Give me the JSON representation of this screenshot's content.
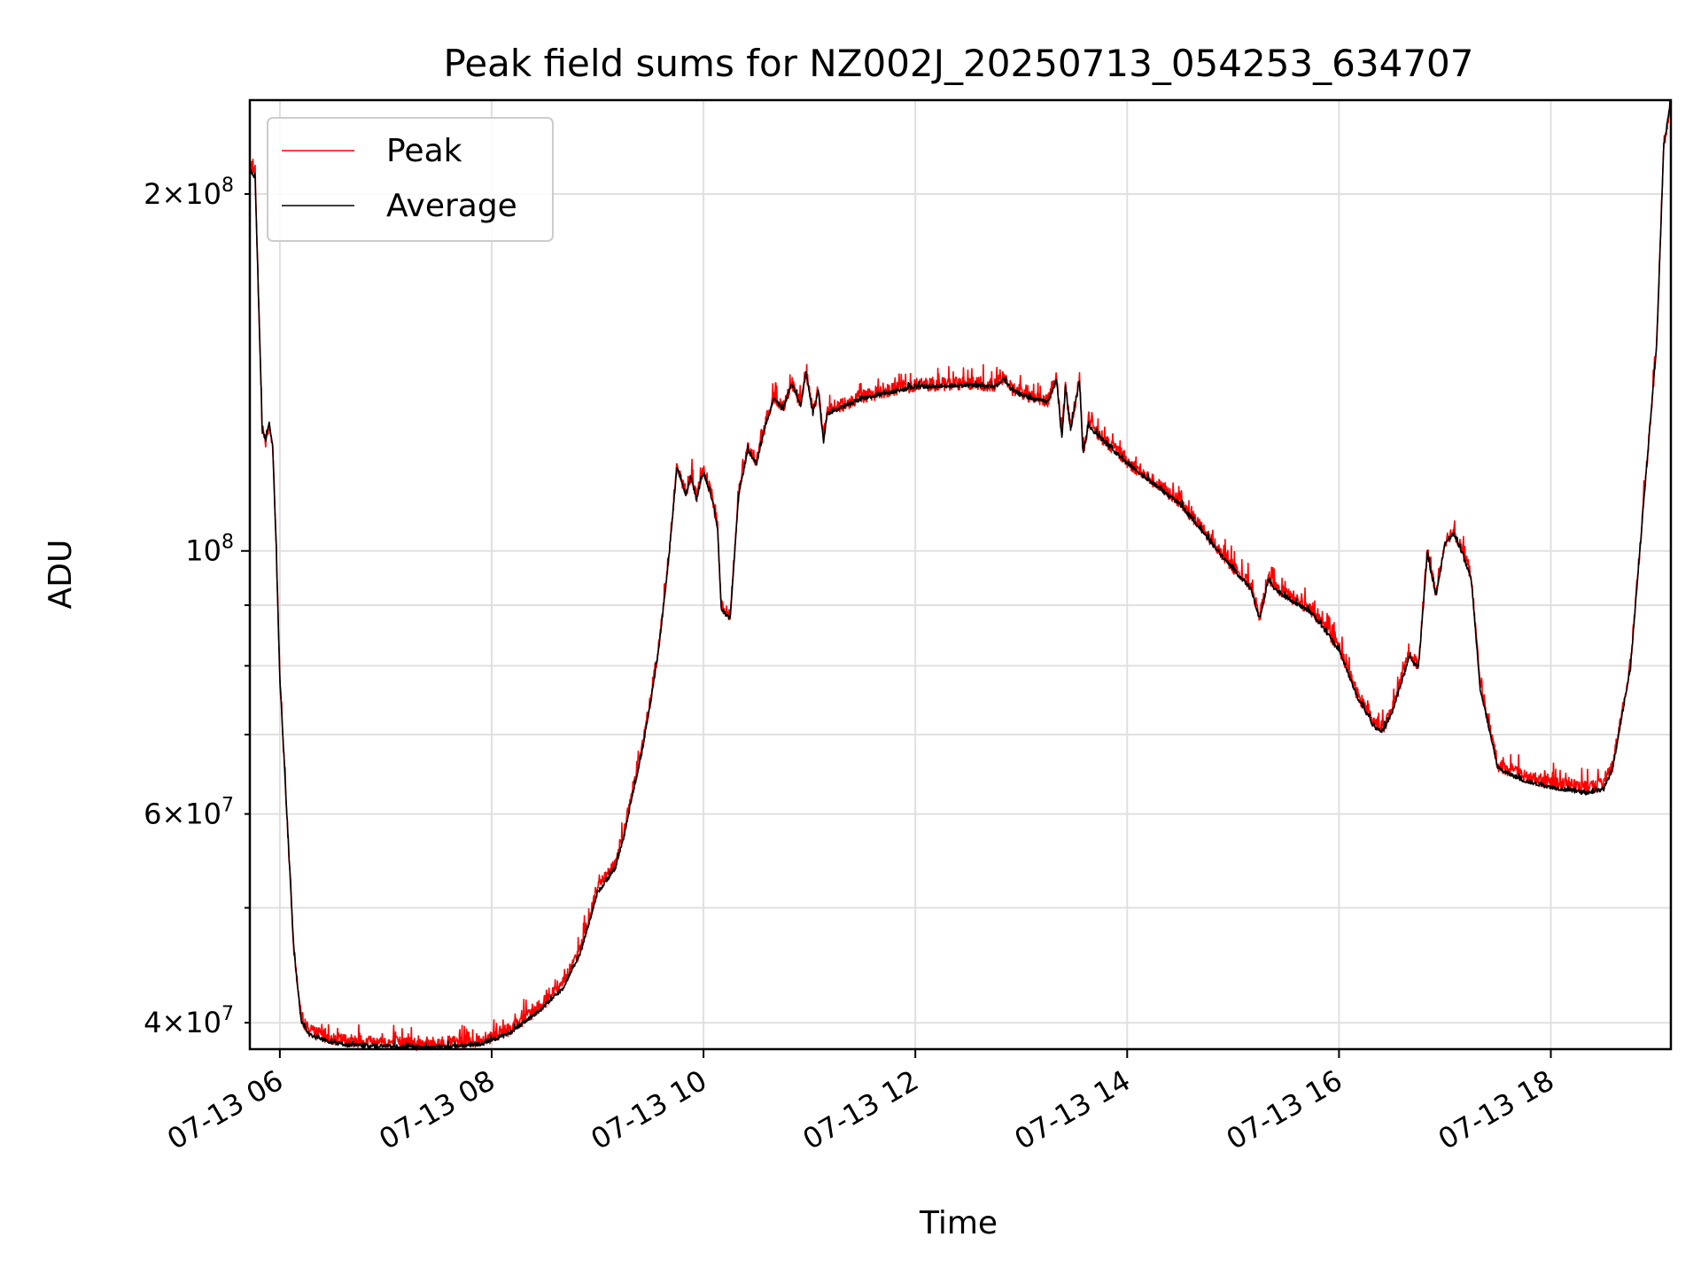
{
  "chart_data": {
    "type": "line",
    "title": "Peak field sums for NZ002J_20250713_054253_634707",
    "xlabel": "Time",
    "ylabel": "ADU",
    "yscale": "log",
    "grid": true,
    "legend_position": "upper-left",
    "xlim": [
      "2025-07-13 05:43",
      "2025-07-13 19:08"
    ],
    "ylim": [
      38000000,
      240000000
    ],
    "x_ticks": [
      {
        "value": "2025-07-13 06:00",
        "label": "07-13 06"
      },
      {
        "value": "2025-07-13 08:00",
        "label": "07-13 08"
      },
      {
        "value": "2025-07-13 10:00",
        "label": "07-13 10"
      },
      {
        "value": "2025-07-13 12:00",
        "label": "07-13 12"
      },
      {
        "value": "2025-07-13 14:00",
        "label": "07-13 14"
      },
      {
        "value": "2025-07-13 16:00",
        "label": "07-13 16"
      },
      {
        "value": "2025-07-13 18:00",
        "label": "07-13 18"
      }
    ],
    "y_major_ticks": [
      {
        "value": 100000000,
        "base": "10",
        "exp": "8"
      }
    ],
    "y_minor_labeled_ticks": [
      {
        "value": 40000000,
        "mant": "4",
        "base": "10",
        "exp": "7"
      },
      {
        "value": 60000000,
        "mant": "6",
        "base": "10",
        "exp": "7"
      },
      {
        "value": 200000000,
        "mant": "2",
        "base": "10",
        "exp": "8"
      }
    ],
    "y_minor_ticks": [
      50000000,
      70000000,
      80000000,
      90000000
    ],
    "series": [
      {
        "name": "Peak",
        "color": "#ff0000",
        "noise": 0.013,
        "x": [
          "2025-07-13 05:43",
          "2025-07-13 05:46",
          "2025-07-13 05:50",
          "2025-07-13 05:52",
          "2025-07-13 05:54",
          "2025-07-13 05:56",
          "2025-07-13 05:58",
          "2025-07-13 06:00",
          "2025-07-13 06:04",
          "2025-07-13 06:08",
          "2025-07-13 06:12",
          "2025-07-13 06:16",
          "2025-07-13 06:20",
          "2025-07-13 06:25",
          "2025-07-13 06:30",
          "2025-07-13 06:40",
          "2025-07-13 07:00",
          "2025-07-13 07:20",
          "2025-07-13 07:40",
          "2025-07-13 07:55",
          "2025-07-13 08:10",
          "2025-07-13 08:25",
          "2025-07-13 08:40",
          "2025-07-13 08:50",
          "2025-07-13 09:00",
          "2025-07-13 09:10",
          "2025-07-13 09:15",
          "2025-07-13 09:20",
          "2025-07-13 09:25",
          "2025-07-13 09:30",
          "2025-07-13 09:35",
          "2025-07-13 09:40",
          "2025-07-13 09:45",
          "2025-07-13 09:50",
          "2025-07-13 09:53",
          "2025-07-13 09:56",
          "2025-07-13 10:00",
          "2025-07-13 10:05",
          "2025-07-13 10:08",
          "2025-07-13 10:10",
          "2025-07-13 10:15",
          "2025-07-13 10:18",
          "2025-07-13 10:20",
          "2025-07-13 10:25",
          "2025-07-13 10:30",
          "2025-07-13 10:35",
          "2025-07-13 10:40",
          "2025-07-13 10:45",
          "2025-07-13 10:50",
          "2025-07-13 10:55",
          "2025-07-13 10:58",
          "2025-07-13 11:02",
          "2025-07-13 11:05",
          "2025-07-13 11:08",
          "2025-07-13 11:10",
          "2025-07-13 11:15",
          "2025-07-13 11:30",
          "2025-07-13 12:00",
          "2025-07-13 12:30",
          "2025-07-13 12:45",
          "2025-07-13 12:50",
          "2025-07-13 12:55",
          "2025-07-13 13:05",
          "2025-07-13 13:15",
          "2025-07-13 13:20",
          "2025-07-13 13:23",
          "2025-07-13 13:25",
          "2025-07-13 13:28",
          "2025-07-13 13:30",
          "2025-07-13 13:33",
          "2025-07-13 13:35",
          "2025-07-13 13:38",
          "2025-07-13 13:45",
          "2025-07-13 14:00",
          "2025-07-13 14:30",
          "2025-07-13 15:00",
          "2025-07-13 15:10",
          "2025-07-13 15:15",
          "2025-07-13 15:20",
          "2025-07-13 15:25",
          "2025-07-13 15:45",
          "2025-07-13 16:00",
          "2025-07-13 16:10",
          "2025-07-13 16:20",
          "2025-07-13 16:25",
          "2025-07-13 16:30",
          "2025-07-13 16:40",
          "2025-07-13 16:45",
          "2025-07-13 16:50",
          "2025-07-13 16:55",
          "2025-07-13 17:00",
          "2025-07-13 17:05",
          "2025-07-13 17:10",
          "2025-07-13 17:15",
          "2025-07-13 17:20",
          "2025-07-13 17:30",
          "2025-07-13 17:45",
          "2025-07-13 18:00",
          "2025-07-13 18:20",
          "2025-07-13 18:30",
          "2025-07-13 18:35",
          "2025-07-13 18:45",
          "2025-07-13 19:00",
          "2025-07-13 19:04",
          "2025-07-13 19:08"
        ],
        "y": [
          210000000,
          206000000,
          127000000,
          124000000,
          128000000,
          122000000,
          100000000,
          78000000,
          60000000,
          46000000,
          40500000,
          39500000,
          39200000,
          39000000,
          38800000,
          38600000,
          38500000,
          38400000,
          38500000,
          38700000,
          39500000,
          41000000,
          43000000,
          46000000,
          52000000,
          54500000,
          58000000,
          63000000,
          68000000,
          75000000,
          84000000,
          98000000,
          118000000,
          112000000,
          116000000,
          111000000,
          117000000,
          111000000,
          105000000,
          90000000,
          88000000,
          102000000,
          112000000,
          122000000,
          119000000,
          128000000,
          135000000,
          132000000,
          139000000,
          133000000,
          142000000,
          131000000,
          137000000,
          124000000,
          131000000,
          132000000,
          135000000,
          138000000,
          138500000,
          138000000,
          140000000,
          137000000,
          135000000,
          134000000,
          140000000,
          125000000,
          138000000,
          127000000,
          132000000,
          140000000,
          121000000,
          128000000,
          125000000,
          119000000,
          110000000,
          97000000,
          93500000,
          88000000,
          95000000,
          93000000,
          89000000,
          83000000,
          76000000,
          71500000,
          71000000,
          73500000,
          82000000,
          80000000,
          100000000,
          92000000,
          102000000,
          104000000,
          100000000,
          95000000,
          77000000,
          66000000,
          64500000,
          63800000,
          63200000,
          63500000,
          66000000,
          80000000,
          150000000,
          220000000,
          240000000
        ]
      },
      {
        "name": "Average",
        "color": "#000000",
        "noise": 0.004,
        "x": [
          "2025-07-13 05:43",
          "2025-07-13 05:46",
          "2025-07-13 05:50",
          "2025-07-13 05:52",
          "2025-07-13 05:54",
          "2025-07-13 05:56",
          "2025-07-13 05:58",
          "2025-07-13 06:00",
          "2025-07-13 06:04",
          "2025-07-13 06:08",
          "2025-07-13 06:12",
          "2025-07-13 06:16",
          "2025-07-13 06:20",
          "2025-07-13 06:25",
          "2025-07-13 06:30",
          "2025-07-13 06:40",
          "2025-07-13 07:00",
          "2025-07-13 07:20",
          "2025-07-13 07:40",
          "2025-07-13 07:55",
          "2025-07-13 08:10",
          "2025-07-13 08:25",
          "2025-07-13 08:40",
          "2025-07-13 08:50",
          "2025-07-13 09:00",
          "2025-07-13 09:10",
          "2025-07-13 09:15",
          "2025-07-13 09:20",
          "2025-07-13 09:25",
          "2025-07-13 09:30",
          "2025-07-13 09:35",
          "2025-07-13 09:40",
          "2025-07-13 09:45",
          "2025-07-13 09:50",
          "2025-07-13 09:53",
          "2025-07-13 09:56",
          "2025-07-13 10:00",
          "2025-07-13 10:05",
          "2025-07-13 10:08",
          "2025-07-13 10:10",
          "2025-07-13 10:15",
          "2025-07-13 10:18",
          "2025-07-13 10:20",
          "2025-07-13 10:25",
          "2025-07-13 10:30",
          "2025-07-13 10:35",
          "2025-07-13 10:40",
          "2025-07-13 10:45",
          "2025-07-13 10:50",
          "2025-07-13 10:55",
          "2025-07-13 10:58",
          "2025-07-13 11:02",
          "2025-07-13 11:05",
          "2025-07-13 11:08",
          "2025-07-13 11:10",
          "2025-07-13 11:15",
          "2025-07-13 11:30",
          "2025-07-13 12:00",
          "2025-07-13 12:30",
          "2025-07-13 12:45",
          "2025-07-13 12:50",
          "2025-07-13 12:55",
          "2025-07-13 13:05",
          "2025-07-13 13:15",
          "2025-07-13 13:20",
          "2025-07-13 13:23",
          "2025-07-13 13:25",
          "2025-07-13 13:28",
          "2025-07-13 13:30",
          "2025-07-13 13:33",
          "2025-07-13 13:35",
          "2025-07-13 13:38",
          "2025-07-13 13:45",
          "2025-07-13 14:00",
          "2025-07-13 14:30",
          "2025-07-13 15:00",
          "2025-07-13 15:10",
          "2025-07-13 15:15",
          "2025-07-13 15:20",
          "2025-07-13 15:25",
          "2025-07-13 15:45",
          "2025-07-13 16:00",
          "2025-07-13 16:10",
          "2025-07-13 16:20",
          "2025-07-13 16:25",
          "2025-07-13 16:30",
          "2025-07-13 16:40",
          "2025-07-13 16:45",
          "2025-07-13 16:50",
          "2025-07-13 16:55",
          "2025-07-13 17:00",
          "2025-07-13 17:05",
          "2025-07-13 17:10",
          "2025-07-13 17:15",
          "2025-07-13 17:20",
          "2025-07-13 17:30",
          "2025-07-13 17:45",
          "2025-07-13 18:00",
          "2025-07-13 18:20",
          "2025-07-13 18:30",
          "2025-07-13 18:35",
          "2025-07-13 18:45",
          "2025-07-13 19:00",
          "2025-07-13 19:04",
          "2025-07-13 19:08"
        ],
        "y": [
          210000000,
          206000000,
          127000000,
          124000000,
          128000000,
          122000000,
          100000000,
          78000000,
          60000000,
          46000000,
          40200000,
          39200000,
          38900000,
          38700000,
          38500000,
          38300000,
          38200000,
          38100000,
          38200000,
          38400000,
          39200000,
          40700000,
          42700000,
          45700000,
          51500000,
          54000000,
          57500000,
          62500000,
          67500000,
          74500000,
          83500000,
          97500000,
          117500000,
          111500000,
          115500000,
          110500000,
          116500000,
          110500000,
          104500000,
          89500000,
          87500000,
          101500000,
          111500000,
          121500000,
          118500000,
          127500000,
          134500000,
          131500000,
          138500000,
          132500000,
          141500000,
          130500000,
          136500000,
          123500000,
          130500000,
          131500000,
          134500000,
          137500000,
          138000000,
          137500000,
          139500000,
          136500000,
          134500000,
          133500000,
          139500000,
          124500000,
          137500000,
          126500000,
          131500000,
          139500000,
          120500000,
          127500000,
          124500000,
          118500000,
          109500000,
          96500000,
          93000000,
          87500000,
          94500000,
          92500000,
          88500000,
          82500000,
          75500000,
          71000000,
          70500000,
          73000000,
          81500000,
          79500000,
          99500000,
          91500000,
          101500000,
          103500000,
          99500000,
          94500000,
          76500000,
          65500000,
          64000000,
          63200000,
          62500000,
          63000000,
          65500000,
          79500000,
          150000000,
          220000000,
          240000000
        ]
      }
    ]
  }
}
